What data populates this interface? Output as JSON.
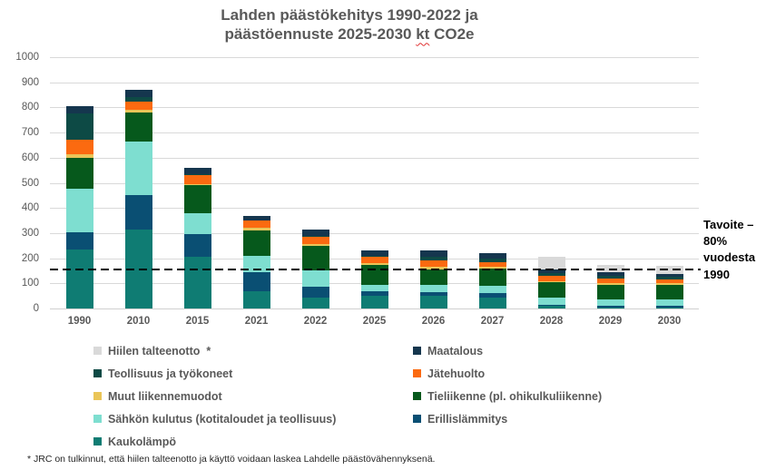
{
  "title": {
    "line1": "Lahden päästökehitys 1990-2022 ja",
    "line2": "päästöennuste 2025-2030 kt CO2e",
    "misspelled_word": "kt"
  },
  "y_axis": {
    "min": 0,
    "max": 1000,
    "step": 100
  },
  "target_line": {
    "value": 155,
    "label": "Tavoite – 80% vuodesta 1990"
  },
  "footnote": "* JRC on tulkinnut, että hiilen talteenotto ja käyttö voidaan laskea Lahdelle päästövähennyksenä.",
  "chart_data": {
    "type": "bar",
    "stacked": true,
    "title": "Lahden päästökehitys 1990-2022 ja päästöennuste 2025-2030 kt CO2e",
    "xlabel": "",
    "ylabel": "",
    "ylim": [
      0,
      1000
    ],
    "grid": true,
    "legend_position": "bottom",
    "categories": [
      "1990",
      "2010",
      "2015",
      "2021",
      "2022",
      "2025",
      "2026",
      "2027",
      "2028",
      "2029",
      "2030"
    ],
    "series": [
      {
        "name": "Kaukolämpö",
        "color": "#0f7c73",
        "values": [
          235,
          315,
          205,
          70,
          45,
          50,
          50,
          45,
          10,
          5,
          5
        ]
      },
      {
        "name": "Erillislämmitys",
        "color": "#0a4f73",
        "values": [
          70,
          135,
          90,
          75,
          40,
          20,
          15,
          15,
          5,
          5,
          5
        ]
      },
      {
        "name": "Sähkön kulutus (kotitaloudet ja teollisuus)",
        "color": "#7eded0",
        "values": [
          170,
          215,
          85,
          65,
          65,
          25,
          30,
          30,
          30,
          25,
          25
        ]
      },
      {
        "name": "Tieliikenne (pl. ohikulkuliikenne)",
        "color": "#06591c",
        "values": [
          125,
          115,
          110,
          100,
          100,
          80,
          60,
          70,
          60,
          60,
          60
        ]
      },
      {
        "name": "Muut liikennemuodot",
        "color": "#eac558",
        "values": [
          15,
          10,
          5,
          10,
          5,
          5,
          10,
          5,
          5,
          5,
          5
        ]
      },
      {
        "name": "Jätehuolto",
        "color": "#fb6a10",
        "values": [
          55,
          35,
          35,
          30,
          30,
          25,
          25,
          20,
          20,
          20,
          15
        ]
      },
      {
        "name": "Teollisuus ja työkoneet",
        "color": "#0d4a45",
        "values": [
          105,
          15,
          5,
          0,
          5,
          5,
          15,
          15,
          10,
          10,
          10
        ]
      },
      {
        "name": "Maatalous",
        "color": "#15364e",
        "values": [
          30,
          30,
          25,
          20,
          25,
          20,
          25,
          20,
          15,
          15,
          13
        ]
      },
      {
        "name": "Hiilen talteenotto",
        "color": "#d9d9d9",
        "values": [
          0,
          0,
          0,
          0,
          0,
          0,
          0,
          0,
          50,
          30,
          32
        ]
      }
    ],
    "legend": {
      "columns": [
        [
          {
            "label": "Hiilen talteenotto  *",
            "series": "Hiilen talteenotto"
          },
          {
            "label": "Teollisuus ja työkoneet",
            "series": "Teollisuus ja työkoneet"
          },
          {
            "label": "Muut liikennemuodot",
            "series": "Muut liikennemuodot"
          },
          {
            "label": "Sähkön kulutus (kotitaloudet ja teollisuus)",
            "series": "Sähkön kulutus (kotitaloudet ja teollisuus)"
          },
          {
            "label": "Kaukolämpö",
            "series": "Kaukolämpö"
          }
        ],
        [
          {
            "label": "Maatalous",
            "series": "Maatalous"
          },
          {
            "label": "Jätehuolto",
            "series": "Jätehuolto"
          },
          {
            "label": "Tieliikenne (pl. ohikulkuliikenne)",
            "series": "Tieliikenne (pl. ohikulkuliikenne)"
          },
          {
            "label": "Erillislämmitys",
            "series": "Erillislämmitys"
          }
        ]
      ]
    }
  }
}
